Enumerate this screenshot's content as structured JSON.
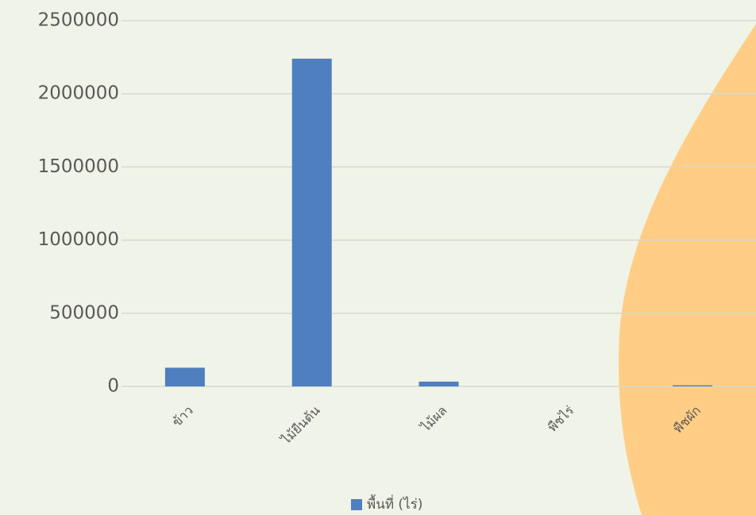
{
  "chart_data": {
    "type": "bar",
    "categories": [
      "ข้าว",
      "ไม้ยืนต้น",
      "ไม้ผล",
      "พืชไร่",
      "พืชผัก"
    ],
    "series": [
      {
        "name": "พื้นที่ (ไร่)",
        "color": "#4f7fbe",
        "values": [
          128000,
          2240000,
          33000,
          0,
          8000
        ]
      }
    ],
    "ylim": [
      0,
      2500000
    ],
    "yticks": [
      0,
      500000,
      1000000,
      1500000,
      2000000,
      2500000
    ],
    "grid": true,
    "legend": "bottom"
  }
}
